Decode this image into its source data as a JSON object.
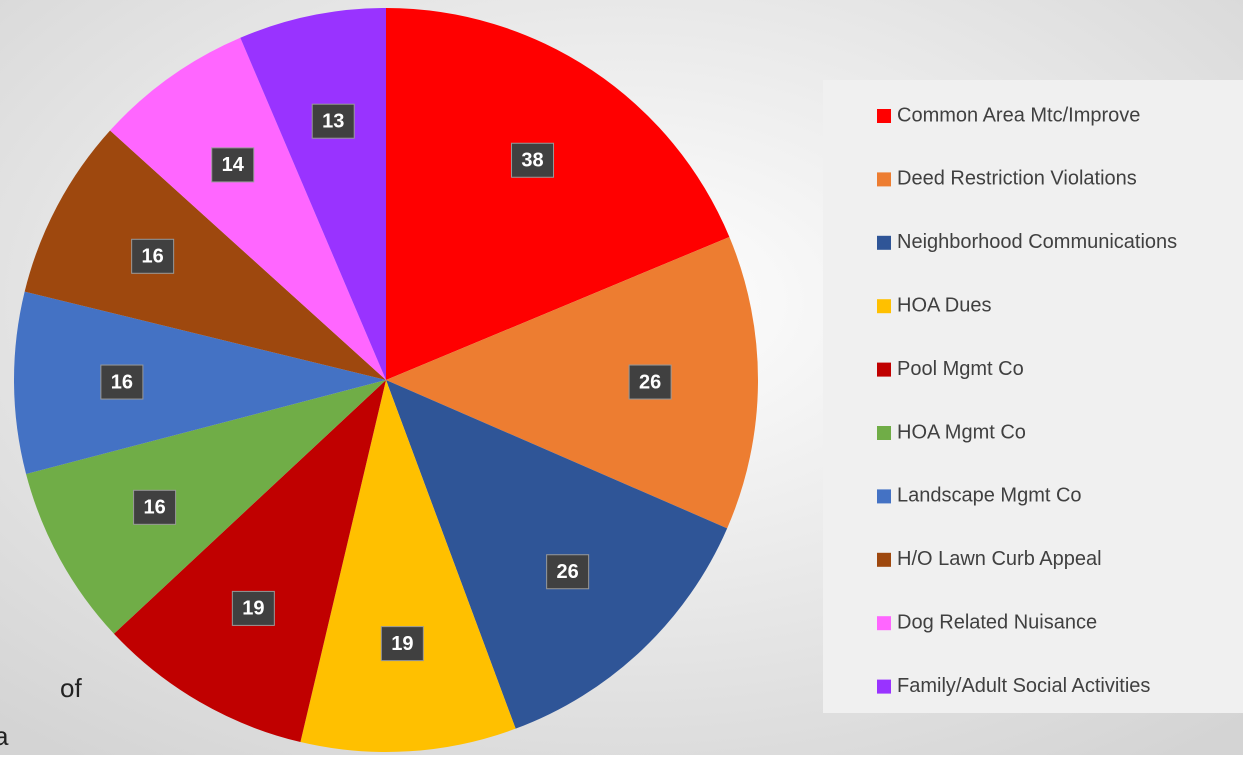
{
  "chart_data": {
    "type": "pie",
    "categories": [
      "Common Area Mtc/Improve",
      "Deed Restriction Violations",
      "Neighborhood Communications",
      "HOA Dues",
      "Pool Mgmt Co",
      "HOA Mgmt Co",
      "Landscape Mgmt Co",
      "H/O Lawn Curb Appeal",
      "Dog Related Nuisance",
      "Family/Adult Social Activities"
    ],
    "values": [
      38,
      26,
      26,
      19,
      19,
      16,
      16,
      16,
      14,
      13
    ],
    "colors": [
      "#ff0000",
      "#ed7d31",
      "#2f5597",
      "#ffc000",
      "#c00000",
      "#70ad47",
      "#4472c4",
      "#9e480e",
      "#ff66ff",
      "#9933ff"
    ],
    "legend": "right",
    "annotations": [
      "of",
      "a"
    ]
  }
}
